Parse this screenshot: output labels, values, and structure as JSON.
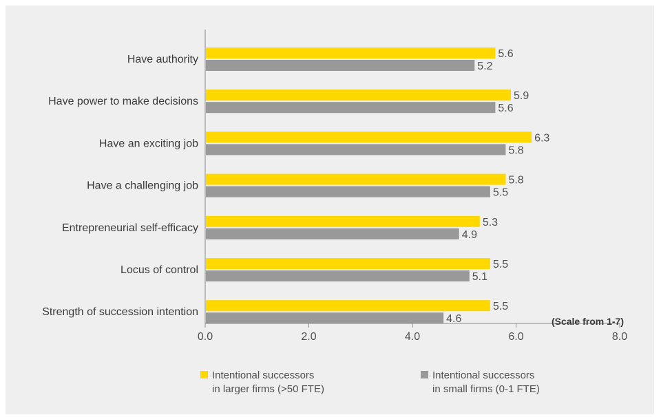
{
  "chart_data": {
    "type": "bar",
    "orientation": "horizontal",
    "categories": [
      "Have authority",
      "Have power to make decisions",
      "Have an exciting job",
      "Have a challenging job",
      "Entrepreneurial self-efficacy",
      "Locus of control",
      "Strength of succession intention"
    ],
    "series": [
      {
        "name": [
          "Intentional successors",
          "in larger firms (>50 FTE)"
        ],
        "color": "#ffd800",
        "values": [
          5.6,
          5.9,
          6.3,
          5.8,
          5.3,
          5.5,
          5.5
        ],
        "labels": [
          "5.6",
          "5.9",
          "6.3",
          "5.8",
          "5.3",
          "5.5",
          "5.5"
        ]
      },
      {
        "name": [
          "Intentional successors",
          "in small firms (0-1 FTE)"
        ],
        "color": "#999999",
        "values": [
          5.2,
          5.6,
          5.8,
          5.5,
          4.9,
          5.1,
          4.6
        ],
        "labels": [
          "5.2",
          "5.6",
          "5.8",
          "5.5",
          "4.9",
          "5.1",
          "4.6"
        ]
      }
    ],
    "xlim": [
      0,
      8
    ],
    "xticks": [
      0,
      2,
      4,
      6,
      8
    ],
    "xtick_labels": [
      "0.0",
      "2.0",
      "4.0",
      "6.0",
      "8.0"
    ],
    "annotation": "(Scale from 1-7)",
    "legend_position": "bottom",
    "grid": false
  }
}
